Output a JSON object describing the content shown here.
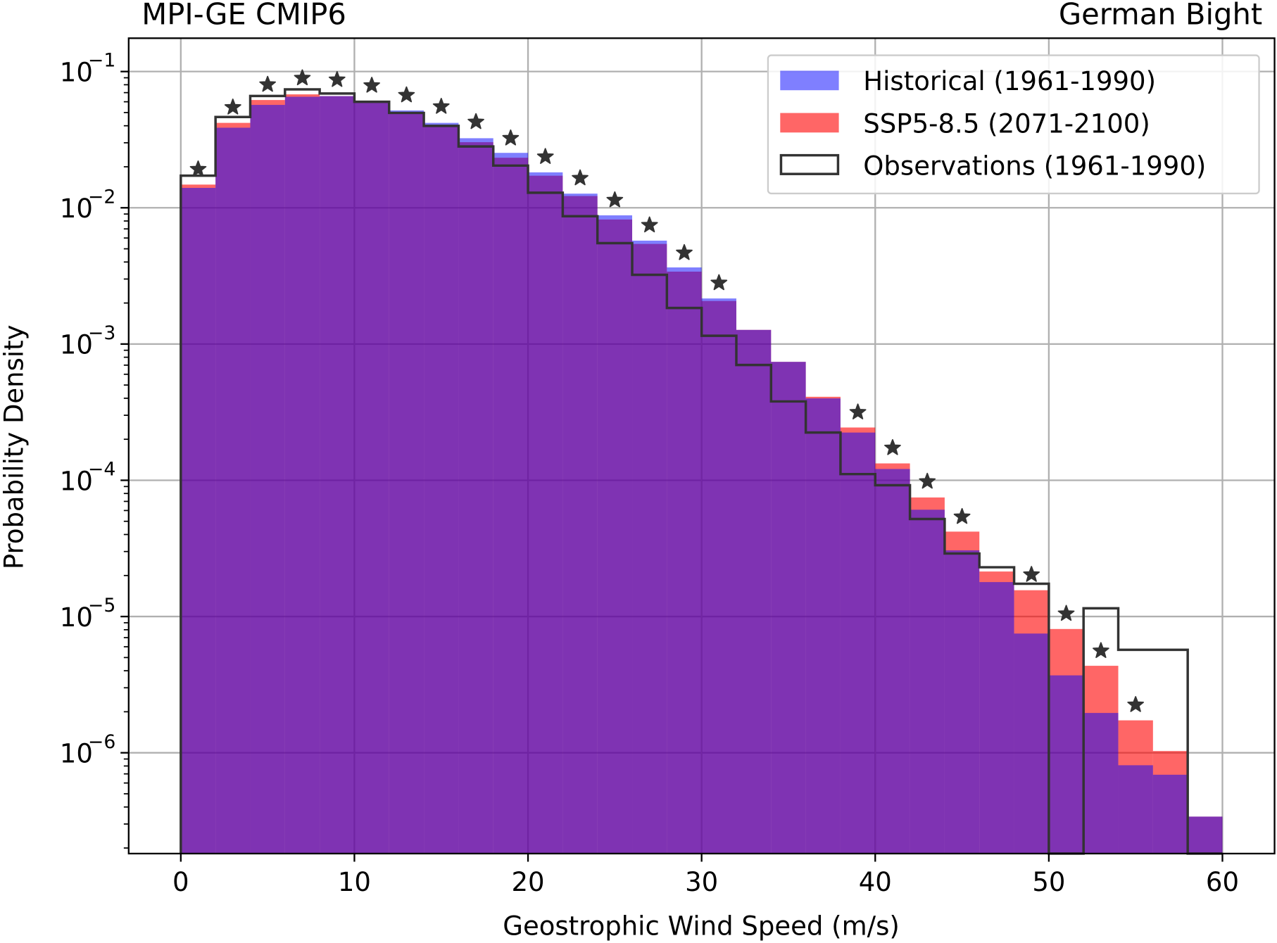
{
  "chart_data": {
    "type": "bar",
    "title_left": "MPI-GE CMIP6",
    "title_right": "German Bight",
    "xlabel": "Geostrophic Wind Speed (m/s)",
    "ylabel": "Probability Density",
    "xlim": [
      -3,
      63
    ],
    "ylim_log10": [
      -6.74,
      -0.755
    ],
    "yscale": "log",
    "grid": true,
    "legend_position": "top-right",
    "x_ticks": [
      0,
      10,
      20,
      30,
      40,
      50,
      60
    ],
    "y_ticks": [
      {
        "base": "10",
        "exp": "−1",
        "v": -1
      },
      {
        "base": "10",
        "exp": "−2",
        "v": -2
      },
      {
        "base": "10",
        "exp": "−3",
        "v": -3
      },
      {
        "base": "10",
        "exp": "−4",
        "v": -4
      },
      {
        "base": "10",
        "exp": "−5",
        "v": -5
      },
      {
        "base": "10",
        "exp": "−6",
        "v": -6
      }
    ],
    "bin_edges": [
      0,
      2,
      4,
      6,
      8,
      10,
      12,
      14,
      16,
      18,
      20,
      22,
      24,
      26,
      28,
      30,
      32,
      34,
      36,
      38,
      40,
      42,
      44,
      46,
      48,
      50,
      52,
      54,
      56,
      58,
      60
    ],
    "series": [
      {
        "name": "Historical (1961-1990)",
        "style": "filled",
        "color": "#0000ff",
        "alpha": 0.5,
        "values": [
          0.014,
          0.0387,
          0.0569,
          0.0653,
          0.066,
          0.06,
          0.0518,
          0.042,
          0.0324,
          0.0253,
          0.0182,
          0.0127,
          0.0088,
          0.00574,
          0.00365,
          0.00216,
          0.00127,
          0.00074,
          0.000399,
          0.000224,
          0.000121,
          6.08e-05,
          3.06e-05,
          1.79e-05,
          7.5e-06,
          3.7e-06,
          1.96e-06,
          8.1e-07,
          6.9e-07,
          3.4e-07
        ]
      },
      {
        "name": "SSP5-8.5 (2071-2100)",
        "style": "filled",
        "color": "#ff0000",
        "alpha": 0.6,
        "values": [
          0.0148,
          0.042,
          0.0618,
          0.068,
          0.066,
          0.06,
          0.0497,
          0.0403,
          0.0303,
          0.0233,
          0.0172,
          0.0122,
          0.0082,
          0.00543,
          0.0034,
          0.00207,
          0.00127,
          0.00074,
          0.00041,
          0.000244,
          0.000133,
          7.48e-05,
          4.2e-05,
          2.14e-05,
          1.56e-05,
          8.1e-06,
          4.35e-06,
          1.73e-06,
          1.03e-06,
          3.4e-07
        ]
      },
      {
        "name": "Observations (1961-1990)",
        "style": "step",
        "color": "#333333",
        "values": [
          0.0172,
          0.0464,
          0.0662,
          0.074,
          0.069,
          0.06,
          0.0497,
          0.0399,
          0.0282,
          0.0204,
          0.0129,
          0.00867,
          0.0055,
          0.00322,
          0.00184,
          0.00115,
          0.000702,
          0.000379,
          0.000224,
          0.000111,
          9.2e-05,
          5.2e-05,
          2.9e-05,
          2.3e-05,
          1.74e-05,
          0,
          1.15e-05,
          5.7e-06,
          5.7e-06,
          0
        ]
      }
    ],
    "stars": {
      "color": "#333333",
      "x": [
        1,
        3,
        5,
        7,
        9,
        11,
        13,
        15,
        17,
        19,
        21,
        23,
        25,
        27,
        29,
        31,
        39,
        41,
        43,
        45,
        49,
        51,
        53,
        55
      ],
      "y": [
        0.0192,
        0.0546,
        0.0803,
        0.0896,
        0.087,
        0.079,
        0.0671,
        0.0553,
        0.0427,
        0.0324,
        0.0237,
        0.0165,
        0.0114,
        0.00745,
        0.00467,
        0.00281,
        0.000316,
        0.000173,
        9.8e-05,
        5.4e-05,
        2.03e-05,
        1.05e-05,
        5.6e-06,
        2.25e-06
      ]
    }
  }
}
